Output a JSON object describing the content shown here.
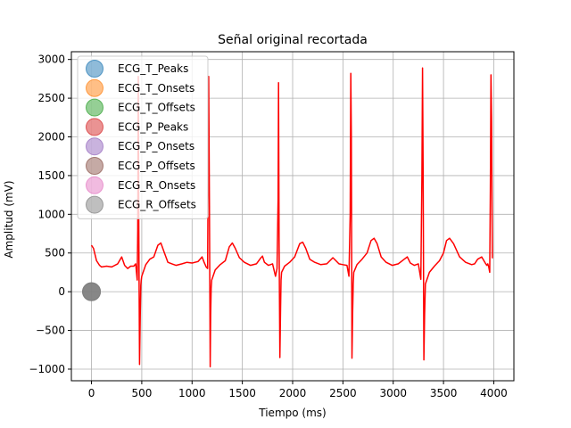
{
  "chart_data": {
    "type": "line",
    "title": "Señal original recortada",
    "xlabel": "Tiempo (ms)",
    "ylabel": "Amplitud (mV)",
    "xlim": [
      -200,
      4200
    ],
    "ylim": [
      -1150,
      3100
    ],
    "xticks": [
      0,
      500,
      1000,
      1500,
      2000,
      2500,
      3000,
      3500,
      4000
    ],
    "yticks": [
      -1000,
      -500,
      0,
      500,
      1000,
      1500,
      2000,
      2500,
      3000
    ],
    "xtick_labels": [
      "0",
      "500",
      "1000",
      "1500",
      "2000",
      "2500",
      "3000",
      "3500",
      "4000"
    ],
    "ytick_labels": [
      "−1000",
      "−500",
      "0",
      "500",
      "1000",
      "1500",
      "2000",
      "2500",
      "3000"
    ],
    "grid": true,
    "legend_position": "top-left",
    "series": [
      {
        "color": "#ff0000",
        "kind": "line",
        "x": [
          0,
          20,
          50,
          80,
          100,
          150,
          200,
          260,
          300,
          330,
          360,
          390,
          420,
          440,
          455,
          460,
          465,
          470,
          478,
          485,
          490,
          495,
          500,
          540,
          580,
          620,
          660,
          690,
          720,
          760,
          800,
          840,
          900,
          950,
          1000,
          1060,
          1100,
          1120,
          1140,
          1155,
          1160,
          1165,
          1172,
          1180,
          1185,
          1190,
          1195,
          1230,
          1280,
          1330,
          1370,
          1400,
          1430,
          1470,
          1520,
          1580,
          1640,
          1680,
          1700,
          1720,
          1760,
          1800,
          1830,
          1845,
          1855,
          1860,
          1865,
          1873,
          1880,
          1885,
          1890,
          1920,
          1970,
          2020,
          2070,
          2100,
          2130,
          2170,
          2220,
          2280,
          2340,
          2400,
          2430,
          2460,
          2500,
          2540,
          2560,
          2572,
          2578,
          2584,
          2590,
          2596,
          2602,
          2608,
          2640,
          2690,
          2740,
          2780,
          2810,
          2840,
          2880,
          2930,
          2990,
          3050,
          3110,
          3140,
          3170,
          3210,
          3250,
          3275,
          3285,
          3292,
          3298,
          3305,
          3312,
          3320,
          3360,
          3410,
          3460,
          3500,
          3530,
          3560,
          3600,
          3660,
          3720,
          3780,
          3810,
          3840,
          3880,
          3915,
          3930,
          3940,
          3950,
          3960,
          3966,
          3972,
          3978,
          3985
        ],
        "y": [
          600,
          560,
          400,
          340,
          320,
          330,
          320,
          360,
          450,
          340,
          300,
          330,
          330,
          360,
          150,
          800,
          2780,
          1000,
          -940,
          -300,
          80,
          150,
          200,
          350,
          420,
          450,
          600,
          630,
          520,
          380,
          360,
          340,
          360,
          380,
          370,
          390,
          450,
          380,
          320,
          300,
          1500,
          2780,
          1200,
          -970,
          -300,
          50,
          150,
          280,
          350,
          400,
          580,
          630,
          560,
          440,
          380,
          340,
          360,
          430,
          460,
          380,
          340,
          360,
          200,
          300,
          1200,
          2700,
          700,
          -850,
          -200,
          150,
          250,
          330,
          380,
          450,
          620,
          640,
          560,
          420,
          380,
          350,
          360,
          440,
          400,
          360,
          350,
          340,
          200,
          1000,
          2820,
          2000,
          -860,
          -300,
          100,
          250,
          350,
          420,
          500,
          660,
          690,
          620,
          450,
          380,
          340,
          360,
          420,
          450,
          370,
          340,
          360,
          160,
          1500,
          2890,
          1500,
          -880,
          -300,
          100,
          250,
          330,
          400,
          500,
          660,
          690,
          620,
          450,
          380,
          350,
          360,
          420,
          450,
          370,
          340,
          360,
          320,
          250,
          1300,
          2800,
          2200,
          430
        ]
      },
      {
        "color": "#7f7f7f",
        "kind": "markers",
        "x": [
          0,
          0,
          0,
          0
        ],
        "y": [
          0,
          0,
          0,
          0
        ]
      }
    ],
    "legend": [
      {
        "label": "ECG_T_Peaks",
        "color": "#1f77b4"
      },
      {
        "label": "ECG_T_Onsets",
        "color": "#ff7f0e"
      },
      {
        "label": "ECG_T_Offsets",
        "color": "#2ca02c"
      },
      {
        "label": "ECG_P_Peaks",
        "color": "#d62728"
      },
      {
        "label": "ECG_P_Onsets",
        "color": "#9467bd"
      },
      {
        "label": "ECG_P_Offsets",
        "color": "#8c564b"
      },
      {
        "label": "ECG_R_Onsets",
        "color": "#e377c2"
      },
      {
        "label": "ECG_R_Offsets",
        "color": "#7f7f7f"
      }
    ]
  }
}
